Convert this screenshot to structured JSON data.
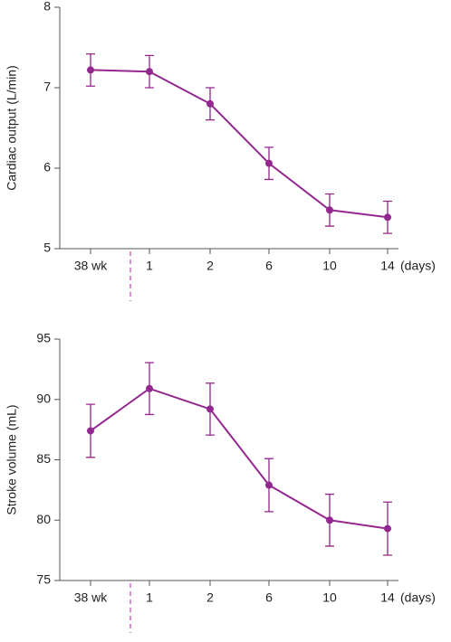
{
  "chart_data": [
    {
      "type": "line",
      "y_label": "Cardiac output (L/min)",
      "categories": [
        "38 wk",
        "1",
        "2",
        "6",
        "10",
        "14"
      ],
      "x_unit": "(days)",
      "values": [
        7.22,
        7.2,
        6.8,
        6.06,
        5.48,
        5.39
      ],
      "errors": [
        0.2,
        0.2,
        0.2,
        0.2,
        0.2,
        0.2
      ],
      "color": "#93278f",
      "ylim": [
        5,
        8
      ],
      "yticks": [
        5,
        6,
        7,
        8
      ]
    },
    {
      "type": "line",
      "y_label": "Stroke volume (mL)",
      "categories": [
        "38 wk",
        "1",
        "2",
        "6",
        "10",
        "14"
      ],
      "x_unit": "(days)",
      "values": [
        87.4,
        90.9,
        89.2,
        82.9,
        80.0,
        79.3
      ],
      "errors": [
        2.2,
        2.15,
        2.15,
        2.2,
        2.15,
        2.2
      ],
      "color": "#93278f",
      "ylim": [
        75,
        95
      ],
      "yticks": [
        75,
        80,
        85,
        90,
        95
      ]
    }
  ]
}
